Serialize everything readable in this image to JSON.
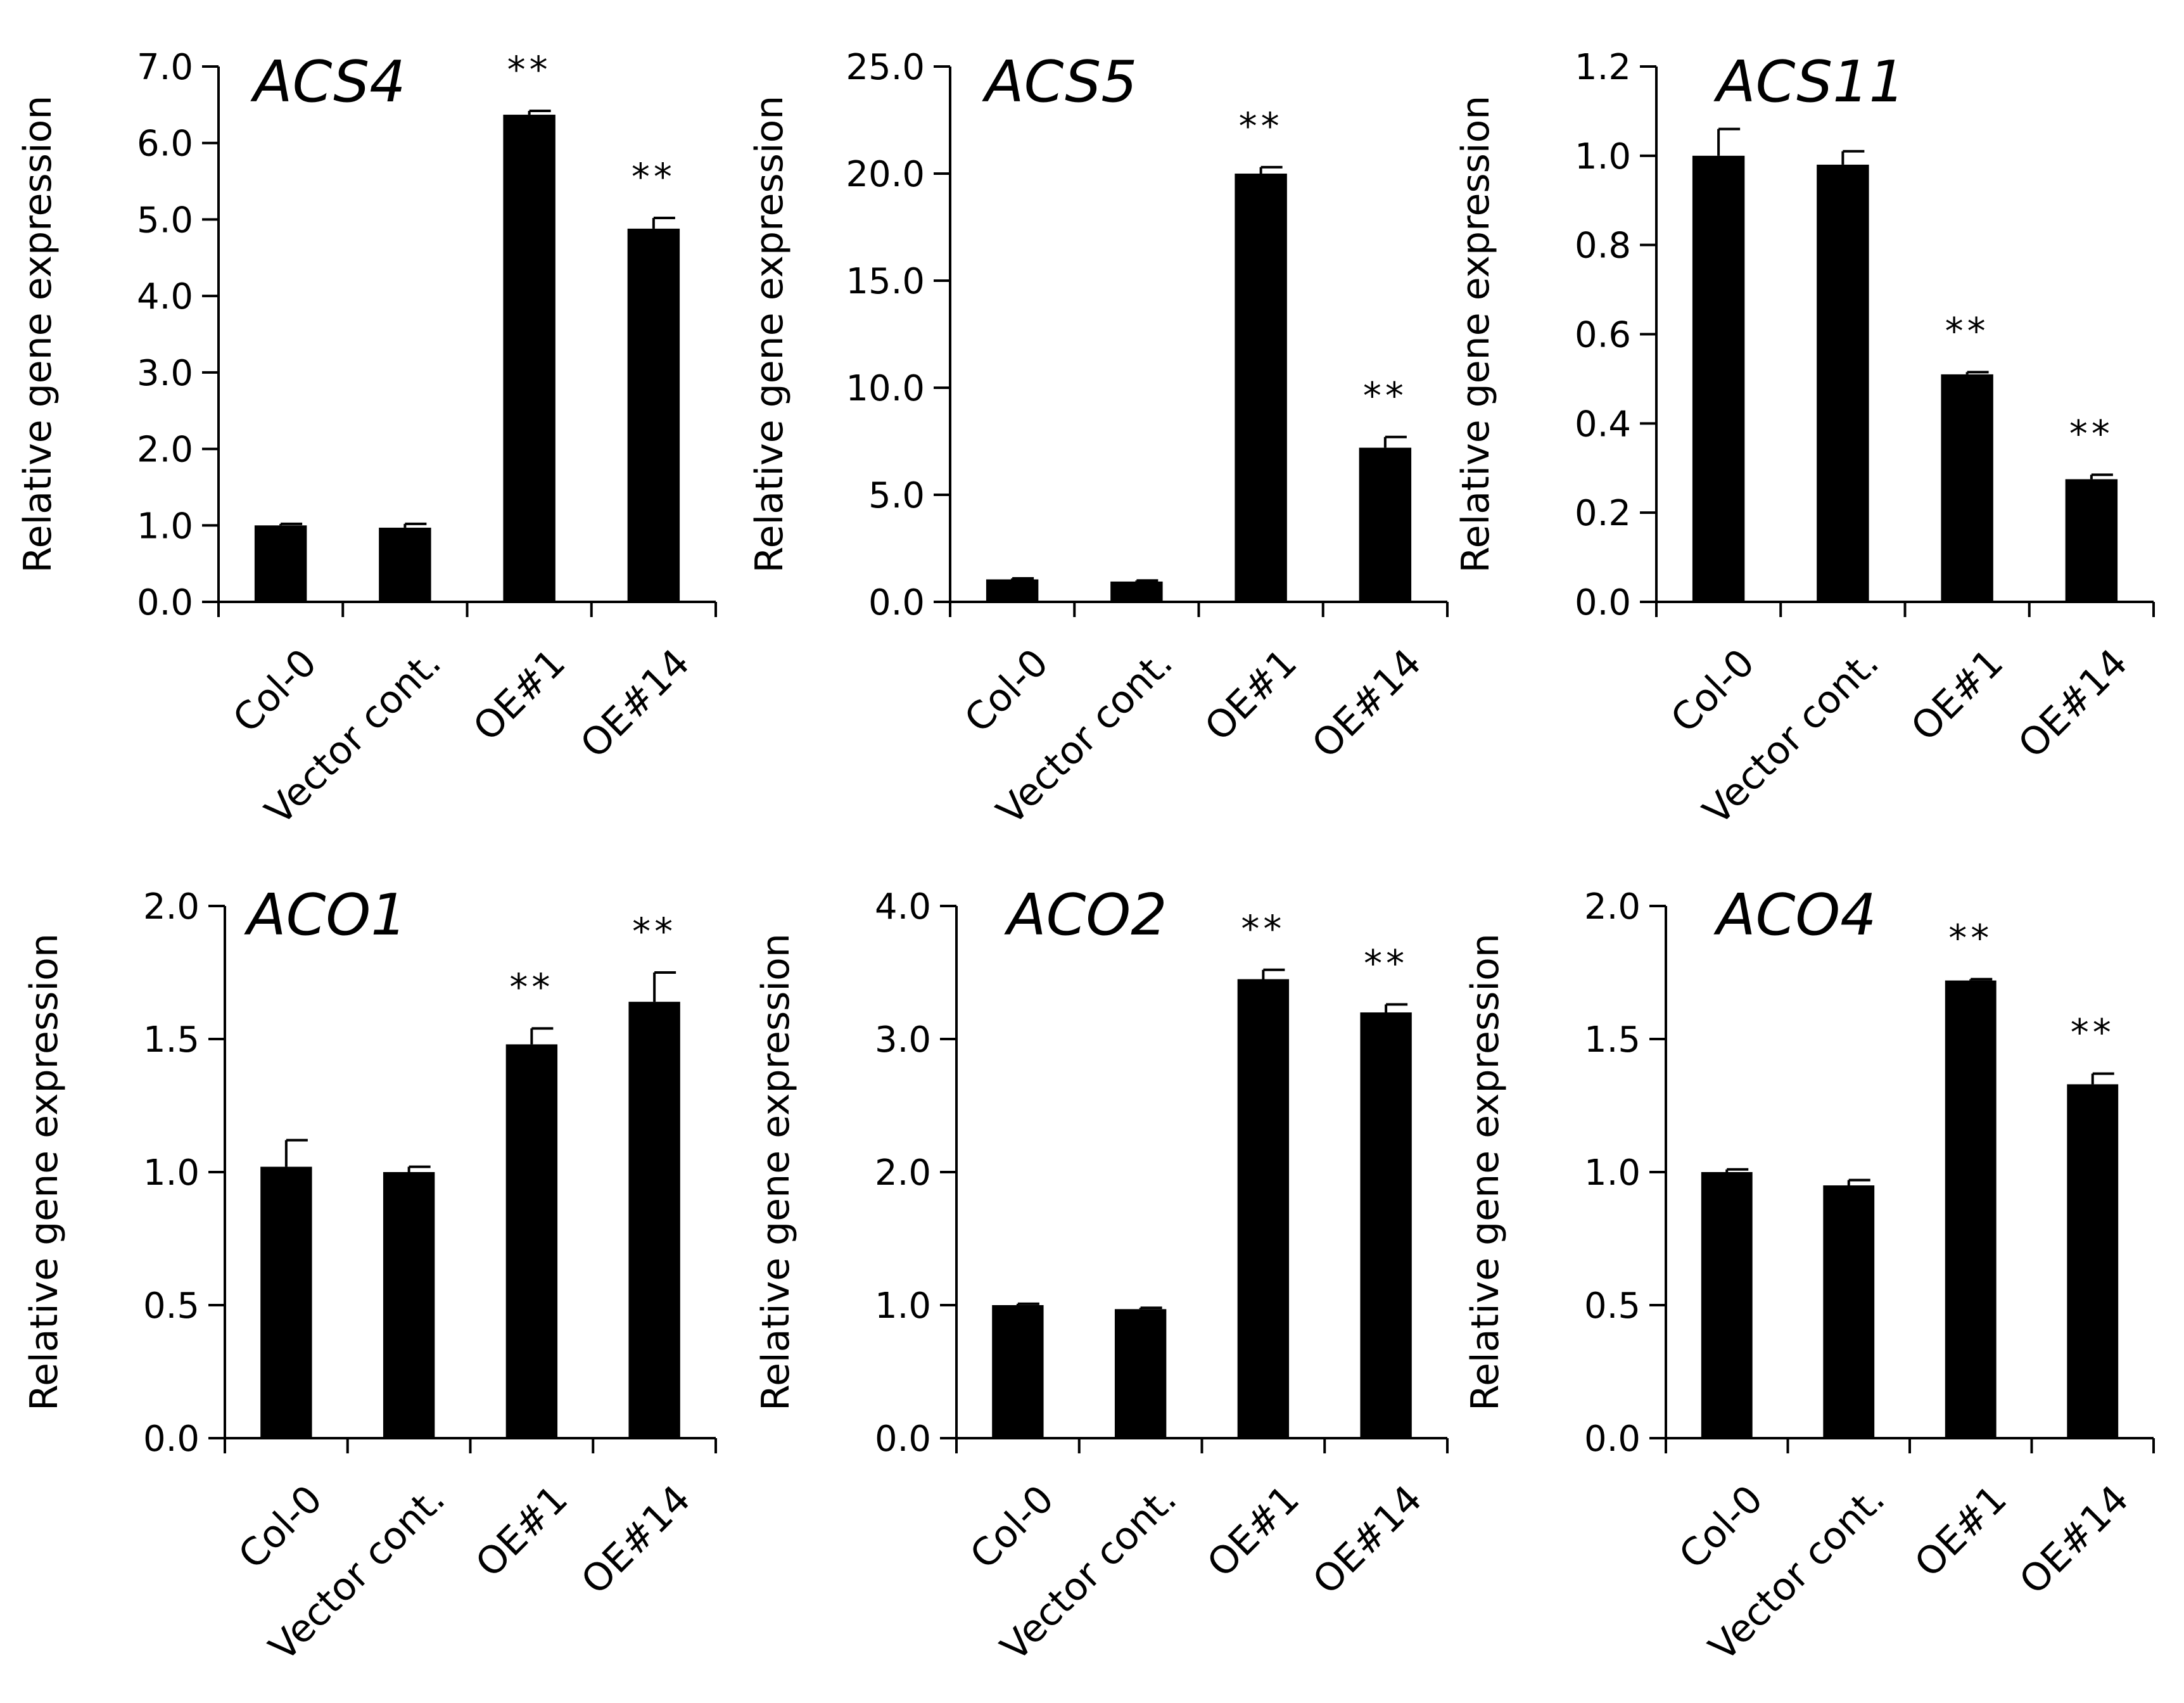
{
  "chart_data": [
    {
      "type": "bar",
      "title": "ACS4",
      "ylabel": "Relative gene expression",
      "categories": [
        "Col-0",
        "Vector cont.",
        "OE#1",
        "OE#14"
      ],
      "values": [
        1.0,
        0.97,
        6.37,
        4.88
      ],
      "errors": [
        0.02,
        0.05,
        0.05,
        0.14
      ],
      "significance": [
        "",
        "",
        "**",
        "**"
      ],
      "ylim": [
        0,
        7
      ],
      "yticks": [
        "0.0",
        "1.0",
        "2.0",
        "3.0",
        "4.0",
        "5.0",
        "6.0",
        "7.0"
      ]
    },
    {
      "type": "bar",
      "title": "ACS5",
      "ylabel": "Relative gene expression",
      "categories": [
        "Col-0",
        "Vector cont.",
        "OE#1",
        "OE#14"
      ],
      "values": [
        1.05,
        0.95,
        20.0,
        7.2
      ],
      "errors": [
        0.05,
        0.05,
        0.3,
        0.5
      ],
      "significance": [
        "",
        "",
        "**",
        "**"
      ],
      "ylim": [
        0,
        25
      ],
      "yticks": [
        "0.0",
        "5.0",
        "10.0",
        "15.0",
        "20.0",
        "25.0"
      ]
    },
    {
      "type": "bar",
      "title": "ACS11",
      "ylabel": "Relative gene expression",
      "categories": [
        "Col-0",
        "Vector cont.",
        "OE#1",
        "OE#14"
      ],
      "values": [
        1.0,
        0.98,
        0.51,
        0.275
      ],
      "errors": [
        0.06,
        0.03,
        0.005,
        0.01
      ],
      "significance": [
        "",
        "",
        "**",
        "**"
      ],
      "ylim": [
        0,
        1.2
      ],
      "yticks": [
        "0.0",
        "0.2",
        "0.4",
        "0.6",
        "0.8",
        "1.0",
        "1.2"
      ]
    },
    {
      "type": "bar",
      "title": "ACO1",
      "ylabel": "Relative gene expression",
      "categories": [
        "Col-0",
        "Vector cont.",
        "OE#1",
        "OE#14"
      ],
      "values": [
        1.02,
        1.0,
        1.48,
        1.64
      ],
      "errors": [
        0.1,
        0.02,
        0.06,
        0.11
      ],
      "significance": [
        "",
        "",
        "**",
        "**"
      ],
      "ylim": [
        0,
        2
      ],
      "yticks": [
        "0.0",
        "0.5",
        "1.0",
        "1.5",
        "2.0"
      ]
    },
    {
      "type": "bar",
      "title": "ACO2",
      "ylabel": "Relative gene expression",
      "categories": [
        "Col-0",
        "Vector cont.",
        "OE#1",
        "OE#14"
      ],
      "values": [
        1.0,
        0.97,
        3.45,
        3.2
      ],
      "errors": [
        0.01,
        0.01,
        0.07,
        0.06
      ],
      "significance": [
        "",
        "",
        "**",
        "**"
      ],
      "ylim": [
        0,
        4
      ],
      "yticks": [
        "0.0",
        "1.0",
        "2.0",
        "3.0",
        "4.0"
      ]
    },
    {
      "type": "bar",
      "title": "ACO4",
      "ylabel": "Relative gene expression",
      "categories": [
        "Col-0",
        "Vector cont.",
        "OE#1",
        "OE#14"
      ],
      "values": [
        1.0,
        0.95,
        1.72,
        1.33
      ],
      "errors": [
        0.01,
        0.02,
        0.005,
        0.04
      ],
      "significance": [
        "",
        "",
        "**",
        "**"
      ],
      "ylim": [
        0,
        2
      ],
      "yticks": [
        "0.0",
        "0.5",
        "1.0",
        "1.5",
        "2.0"
      ]
    }
  ]
}
